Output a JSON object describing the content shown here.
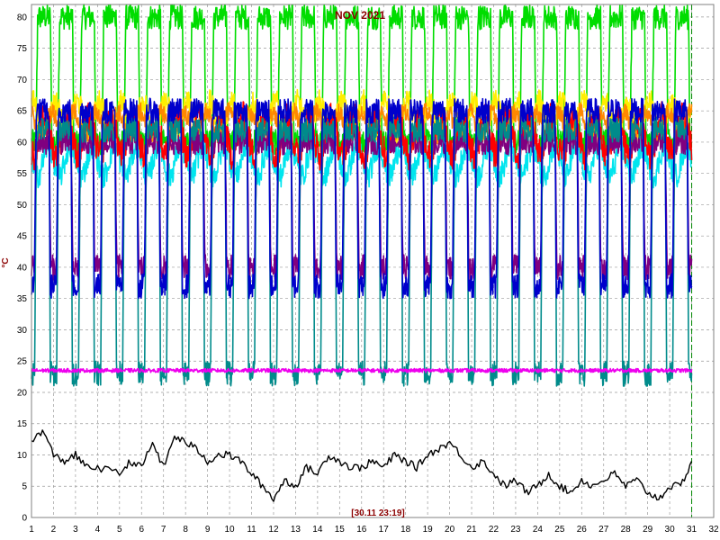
{
  "chart_data": {
    "type": "line",
    "title": "NOV 2021",
    "ylabel": "°C",
    "timestamp": "[30.11 23:19]",
    "xlim": [
      1,
      32
    ],
    "ylim": [
      0,
      82
    ],
    "x_ticks": [
      1,
      2,
      3,
      4,
      5,
      6,
      7,
      8,
      9,
      10,
      11,
      12,
      13,
      14,
      15,
      16,
      17,
      18,
      19,
      20,
      21,
      22,
      23,
      24,
      25,
      26,
      27,
      28,
      29,
      30,
      31,
      32
    ],
    "y_ticks": [
      0,
      5,
      10,
      15,
      20,
      25,
      30,
      35,
      40,
      45,
      50,
      55,
      60,
      65,
      70,
      75,
      80
    ],
    "grid": true,
    "now_marker_x": 31,
    "series": [
      {
        "color": "#00dd00",
        "profile": "cycle",
        "low": 60,
        "high": 80
      },
      {
        "color": "#ffee00",
        "profile": "band",
        "mid": 64,
        "amp": 4
      },
      {
        "color": "#ff8800",
        "profile": "band",
        "mid": 63,
        "amp": 3
      },
      {
        "color": "#00e5ee",
        "profile": "band",
        "mid": 57,
        "amp": 4
      },
      {
        "color": "#ff0000",
        "profile": "band",
        "mid": 61,
        "amp": 5
      },
      {
        "color": "#800080",
        "profile": "cycle",
        "low": 40,
        "high": 60
      },
      {
        "color": "#008b8b",
        "profile": "cycle",
        "low": 23,
        "high": 62
      },
      {
        "color": "#0000cc",
        "profile": "cycle",
        "low": 37,
        "high": 65
      },
      {
        "color": "#ee00ee",
        "profile": "flat",
        "mid": 23.5,
        "amp": 0.6
      },
      {
        "color": "#000000",
        "profile": "outdoor",
        "x": [
          1,
          1.5,
          2,
          2.5,
          3,
          3.5,
          4,
          5,
          5.5,
          6,
          6.5,
          7,
          7.5,
          8,
          8.5,
          9,
          9.5,
          10,
          10.5,
          11,
          11.5,
          12,
          12.5,
          13,
          13.5,
          14,
          14.5,
          15,
          15.5,
          16,
          16.5,
          17,
          17.5,
          18,
          18.5,
          19,
          19.5,
          20,
          20.5,
          21,
          21.5,
          22,
          22.5,
          23,
          23.5,
          24,
          24.5,
          25,
          25.5,
          26,
          26.5,
          27,
          27.5,
          28,
          28.5,
          29,
          29.5,
          30,
          30.5,
          31
        ],
        "y": [
          12,
          14,
          10,
          9,
          10,
          8,
          8,
          7,
          9,
          8,
          12,
          8,
          13,
          12,
          11,
          9,
          10,
          10,
          9,
          7,
          5,
          3,
          6,
          5,
          8,
          7,
          10,
          9,
          8,
          8,
          9,
          8,
          10,
          9,
          8,
          10,
          11,
          12,
          10,
          8,
          9,
          7,
          5,
          6,
          4,
          5,
          7,
          5,
          4,
          6,
          5,
          6,
          7,
          5,
          6,
          4,
          3,
          5,
          5,
          9
        ]
      }
    ]
  }
}
